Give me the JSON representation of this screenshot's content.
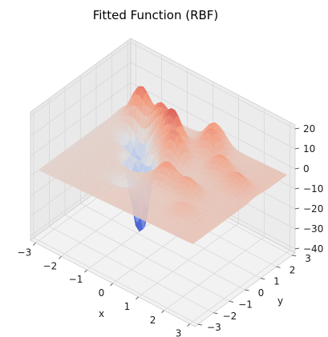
{
  "chart_data": {
    "type": "surface3d",
    "title": "Fitted Function (RBF)",
    "xlabel": "x",
    "ylabel": "y",
    "zlabel": "",
    "xlim": [
      -3.2,
      3.2
    ],
    "ylim": [
      -3.2,
      3.2
    ],
    "zlim": [
      -42,
      22
    ],
    "x_ticks": [
      "−3",
      "−2",
      "−1",
      "0",
      "1",
      "2",
      "3"
    ],
    "y_ticks": [
      "−3",
      "−2",
      "−1",
      "0",
      "1",
      "2",
      "3"
    ],
    "z_ticks": [
      "20",
      "10",
      "0",
      "−10",
      "−20",
      "−30",
      "−40"
    ],
    "x_tick_values": [
      -3,
      -2,
      -1,
      0,
      1,
      2,
      3
    ],
    "y_tick_values": [
      -3,
      -2,
      -1,
      0,
      1,
      2,
      3
    ],
    "z_tick_values": [
      20,
      10,
      0,
      -10,
      -20,
      -30,
      -40
    ],
    "colormap": "coolwarm",
    "colors": {
      "low": "#3b4cc0",
      "mid": "#dddddd",
      "high": "#b40426",
      "pane": "#f2f2f2",
      "grid": "#d8d8d8"
    },
    "grid": true,
    "surface": {
      "base_level": -5,
      "features": [
        {
          "x": -2.2,
          "y": 2.2,
          "height": 17
        },
        {
          "x": -1.3,
          "y": 2.0,
          "height": 15
        },
        {
          "x": -0.6,
          "y": 1.6,
          "height": 18
        },
        {
          "x": -0.1,
          "y": 0.9,
          "height": 14
        },
        {
          "x": 0.6,
          "y": 2.1,
          "height": 12
        },
        {
          "x": 1.4,
          "y": 1.4,
          "height": 9
        },
        {
          "x": 0.4,
          "y": -0.4,
          "height": 10
        },
        {
          "x": 1.3,
          "y": -0.5,
          "height": 8
        },
        {
          "x": 2.3,
          "y": 1.0,
          "height": 8
        },
        {
          "x": 0.3,
          "y": 2.8,
          "height": 10
        },
        {
          "x": -1.0,
          "y": 0.2,
          "height": -40
        },
        {
          "x": -1.7,
          "y": 1.2,
          "height": -18
        },
        {
          "x": -0.8,
          "y": -1.3,
          "height": -4
        },
        {
          "x": 1.8,
          "y": -1.6,
          "height": 4
        }
      ]
    }
  }
}
